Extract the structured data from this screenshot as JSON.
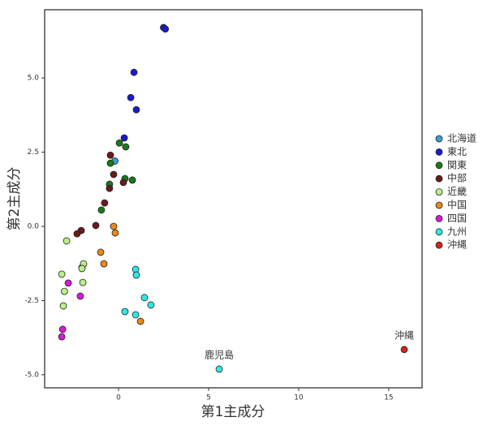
{
  "chart_data": {
    "type": "scatter",
    "xlabel": "第1主成分",
    "ylabel": "第2主成分",
    "xlim": [
      -4.1,
      16.85
    ],
    "ylim": [
      -5.44,
      7.3
    ],
    "xticks": [
      0,
      5,
      10,
      15
    ],
    "yticks": [
      {
        "value": -5,
        "label": "-5.0"
      },
      {
        "value": -2.5,
        "label": "-2.5"
      },
      {
        "value": 0,
        "label": "0.0"
      },
      {
        "value": 2.5,
        "label": "2.5"
      },
      {
        "value": 5,
        "label": "5.0"
      }
    ],
    "grid": false,
    "legend": "right",
    "series": [
      {
        "name": "北海道",
        "color": "#3aa0d0",
        "x": [
          -0.2
        ],
        "y": [
          2.2
        ]
      },
      {
        "name": "東北",
        "color": "#1a1acc",
        "x": [
          2.5,
          2.6,
          0.86,
          0.68,
          0.99,
          0.32
        ],
        "y": [
          6.7,
          6.65,
          5.19,
          4.34,
          3.93,
          2.98
        ]
      },
      {
        "name": "関東",
        "color": "#1a7a1a",
        "x": [
          0.05,
          0.4,
          -0.45,
          0.36,
          0.77,
          -0.5,
          -0.95
        ],
        "y": [
          2.81,
          2.68,
          2.13,
          1.61,
          1.56,
          1.42,
          0.55
        ]
      },
      {
        "name": "中部",
        "color": "#6b1a1a",
        "x": [
          -0.45,
          -0.27,
          0.27,
          -0.5,
          -0.77,
          -1.26,
          -2.07,
          -2.3,
          -2.03
        ],
        "y": [
          2.4,
          1.75,
          1.48,
          1.28,
          0.79,
          0.03,
          -0.14,
          -0.25,
          -1.39
        ]
      },
      {
        "name": "近畿",
        "color": "#b8f08a",
        "x": [
          -2.88,
          -1.94,
          -2.03,
          -3.15,
          -1.98,
          -3.0,
          -3.06
        ],
        "y": [
          -0.49,
          -1.26,
          -1.42,
          -1.61,
          -1.89,
          -2.19,
          -2.68
        ]
      },
      {
        "name": "中国",
        "color": "#e8891a",
        "x": [
          -0.27,
          -0.18,
          -0.99,
          -0.81,
          1.22
        ],
        "y": [
          0.0,
          -0.22,
          -0.87,
          -1.26,
          -3.2
        ]
      },
      {
        "name": "四国",
        "color": "#d61ad6",
        "x": [
          -2.79,
          -2.12,
          -3.1,
          -3.15
        ],
        "y": [
          -1.91,
          -2.35,
          -3.47,
          -3.72
        ]
      },
      {
        "name": "九州",
        "color": "#2ee8e8",
        "x": [
          0.95,
          0.99,
          1.44,
          1.8,
          0.36,
          0.95,
          5.59
        ],
        "y": [
          -1.45,
          -1.64,
          -2.4,
          -2.65,
          -2.87,
          -2.98,
          -4.81
        ],
        "point_labels": [
          null,
          null,
          null,
          null,
          null,
          null,
          "鹿児島"
        ]
      },
      {
        "name": "沖縄",
        "color": "#d62020",
        "x": [
          15.86
        ],
        "y": [
          -4.15
        ],
        "point_labels": [
          "沖縄"
        ]
      }
    ]
  }
}
